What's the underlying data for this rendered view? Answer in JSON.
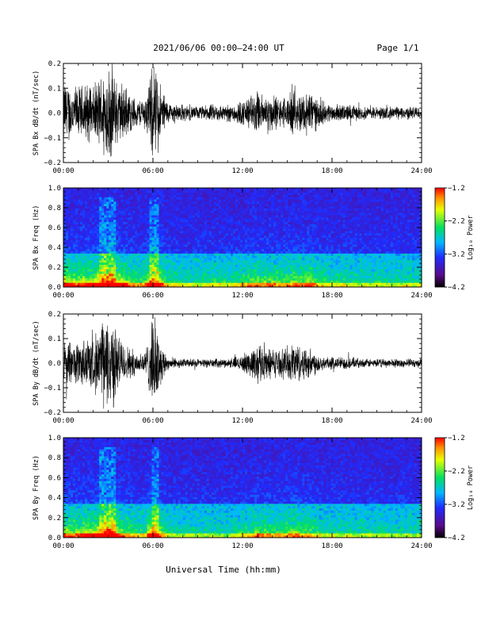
{
  "header": {
    "title": "2021/06/06  00:00–24:00 UT",
    "page": "Page 1/1"
  },
  "xlabel": "Universal Time (hh:mm)",
  "chart_data": [
    {
      "type": "line",
      "ylabel": "SPA Bx dB/dt (nT/sec)",
      "xlim": [
        0,
        24
      ],
      "ylim": [
        -0.2,
        0.2
      ],
      "xticks": [
        "00:00",
        "06:00",
        "12:00",
        "18:00",
        "24:00"
      ],
      "yticks": [
        "−0.2",
        "−0.1",
        "0.0",
        "0.1",
        "0.2"
      ],
      "envelope": {
        "x": [
          0,
          0.5,
          1,
          1.5,
          2,
          2.5,
          2.8,
          3.0,
          3.3,
          3.6,
          4,
          4.5,
          5,
          5.5,
          5.9,
          6.2,
          6.5,
          7,
          8,
          9,
          10,
          11,
          12,
          12.5,
          13,
          13.5,
          14,
          14.5,
          15,
          15.5,
          16,
          16.5,
          17,
          17.5,
          18,
          19,
          20,
          21,
          22,
          23,
          24
        ],
        "amp": [
          0.16,
          0.13,
          0.12,
          0.14,
          0.12,
          0.18,
          0.22,
          0.22,
          0.22,
          0.15,
          0.14,
          0.09,
          0.06,
          0.08,
          0.2,
          0.22,
          0.14,
          0.05,
          0.04,
          0.03,
          0.04,
          0.04,
          0.06,
          0.08,
          0.1,
          0.08,
          0.09,
          0.07,
          0.08,
          0.1,
          0.09,
          0.12,
          0.07,
          0.05,
          0.04,
          0.04,
          0.03,
          0.03,
          0.03,
          0.03,
          0.03
        ]
      }
    },
    {
      "type": "heatmap",
      "ylabel": "SPA Bx Freq (Hz)",
      "xlim": [
        0,
        24
      ],
      "ylim": [
        0,
        1
      ],
      "xticks": [
        "00:00",
        "06:00",
        "12:00",
        "18:00",
        "24:00"
      ],
      "yticks": [
        "0.0",
        "0.2",
        "0.4",
        "0.6",
        "0.8",
        "1.0"
      ],
      "colorbar": {
        "label": "Log₁₀ Power",
        "ticks": [
          "−1.2",
          "−2.2",
          "−3.2",
          "−4.2"
        ],
        "range": [
          -4.2,
          -1.2
        ]
      }
    },
    {
      "type": "line",
      "ylabel": "SPA By dB/dt (nT/sec)",
      "xlim": [
        0,
        24
      ],
      "ylim": [
        -0.2,
        0.2
      ],
      "xticks": [
        "00:00",
        "06:00",
        "12:00",
        "18:00",
        "24:00"
      ],
      "yticks": [
        "−0.2",
        "−0.1",
        "0.0",
        "0.1",
        "0.2"
      ],
      "envelope": {
        "x": [
          0,
          0.5,
          1,
          1.5,
          2,
          2.5,
          2.8,
          3.0,
          3.3,
          3.6,
          4,
          4.5,
          5,
          5.5,
          5.9,
          6.2,
          6.5,
          7,
          8,
          9,
          10,
          11,
          12,
          12.5,
          13,
          13.5,
          14,
          14.5,
          15,
          15.5,
          16,
          16.5,
          17,
          17.5,
          18,
          19,
          20,
          21,
          22,
          23,
          24
        ],
        "amp": [
          0.12,
          0.1,
          0.1,
          0.13,
          0.12,
          0.18,
          0.22,
          0.22,
          0.22,
          0.14,
          0.1,
          0.07,
          0.05,
          0.06,
          0.18,
          0.22,
          0.1,
          0.03,
          0.02,
          0.02,
          0.02,
          0.02,
          0.04,
          0.06,
          0.1,
          0.08,
          0.07,
          0.06,
          0.08,
          0.1,
          0.08,
          0.07,
          0.05,
          0.03,
          0.03,
          0.03,
          0.02,
          0.02,
          0.02,
          0.02,
          0.02
        ]
      }
    },
    {
      "type": "heatmap",
      "ylabel": "SPA By Freq (Hz)",
      "xlim": [
        0,
        24
      ],
      "ylim": [
        0,
        1
      ],
      "xticks": [
        "00:00",
        "06:00",
        "12:00",
        "18:00",
        "24:00"
      ],
      "yticks": [
        "0.0",
        "0.2",
        "0.4",
        "0.6",
        "0.8",
        "1.0"
      ],
      "colorbar": {
        "label": "Log₁₀ Power",
        "ticks": [
          "−1.2",
          "−2.2",
          "−3.2",
          "−4.2"
        ],
        "range": [
          -4.2,
          -1.2
        ]
      }
    }
  ]
}
